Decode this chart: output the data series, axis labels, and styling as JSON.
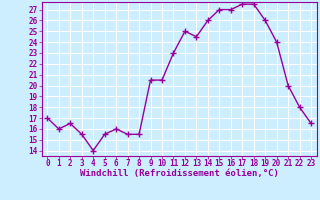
{
  "x": [
    0,
    1,
    2,
    3,
    4,
    5,
    6,
    7,
    8,
    9,
    10,
    11,
    12,
    13,
    14,
    15,
    16,
    17,
    18,
    19,
    20,
    21,
    22,
    23
  ],
  "y": [
    17.0,
    16.0,
    16.5,
    15.5,
    14.0,
    15.5,
    16.0,
    15.5,
    15.5,
    20.5,
    20.5,
    23.0,
    25.0,
    24.5,
    26.0,
    27.0,
    27.0,
    27.5,
    27.5,
    26.0,
    24.0,
    20.0,
    18.0,
    16.5
  ],
  "line_color": "#990099",
  "marker": "+",
  "marker_size": 4,
  "bg_color": "#cceeff",
  "grid_color": "#ffffff",
  "xlabel": "Windchill (Refroidissement éolien,°C)",
  "xlabel_color": "#990099",
  "xlim": [
    -0.5,
    23.5
  ],
  "ylim": [
    13.5,
    27.7
  ],
  "yticks": [
    14,
    15,
    16,
    17,
    18,
    19,
    20,
    21,
    22,
    23,
    24,
    25,
    26,
    27
  ],
  "xticks": [
    0,
    1,
    2,
    3,
    4,
    5,
    6,
    7,
    8,
    9,
    10,
    11,
    12,
    13,
    14,
    15,
    16,
    17,
    18,
    19,
    20,
    21,
    22,
    23
  ],
  "tick_fontsize": 5.5,
  "xlabel_fontsize": 6.5,
  "line_width": 1.0,
  "axis_color": "#990099",
  "tick_color": "#990099"
}
